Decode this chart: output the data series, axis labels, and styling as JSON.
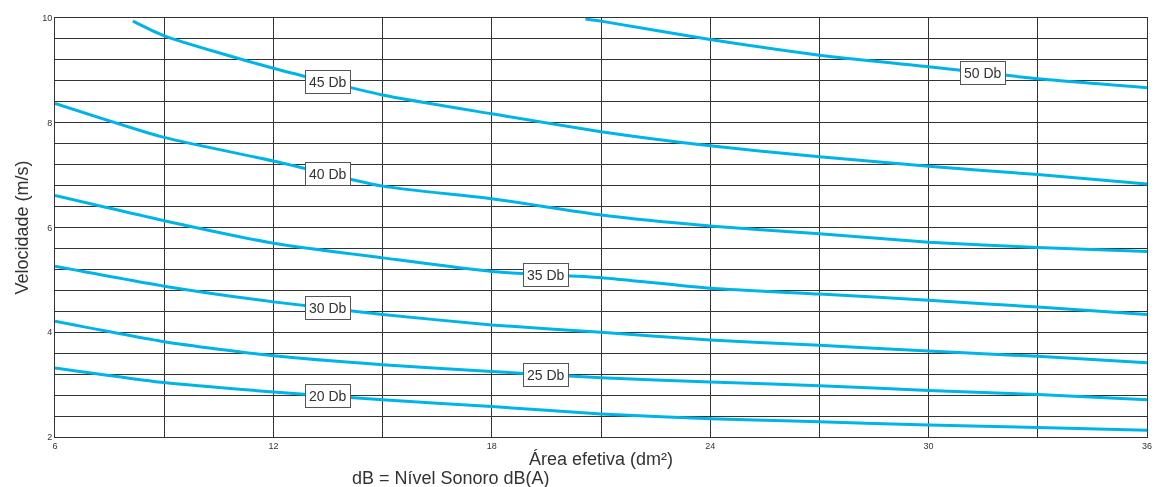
{
  "chart_data": {
    "type": "line",
    "xlabel": "Área efetiva (dm²)",
    "ylabel": "Velocidade (m/s)",
    "annotations": [
      "dB = Nível Sonoro dB(A)"
    ],
    "x": [
      6,
      9,
      12,
      15,
      18,
      21,
      24,
      27,
      30,
      33,
      36
    ],
    "series": [
      {
        "name": "20 Db",
        "color": "#00b4e8",
        "values": [
          3.32,
          3.04,
          2.86,
          2.71,
          2.58,
          2.44,
          2.35,
          2.29,
          2.23,
          2.18,
          2.13
        ]
      },
      {
        "name": "25 Db",
        "color": "#00b4e8",
        "values": [
          4.21,
          3.82,
          3.55,
          3.38,
          3.25,
          3.13,
          3.05,
          2.98,
          2.89,
          2.81,
          2.71
        ]
      },
      {
        "name": "30 Db",
        "color": "#00b4e8",
        "values": [
          5.26,
          4.88,
          4.58,
          4.34,
          4.14,
          4.0,
          3.85,
          3.75,
          3.64,
          3.54,
          3.42
        ]
      },
      {
        "name": "35 Db",
        "color": "#00b4e8",
        "values": [
          6.61,
          6.13,
          5.7,
          5.42,
          5.16,
          5.04,
          4.84,
          4.73,
          4.61,
          4.48,
          4.34
        ]
      },
      {
        "name": "40 Db",
        "color": "#00b4e8",
        "values": [
          8.37,
          7.72,
          7.27,
          6.79,
          6.55,
          6.24,
          6.03,
          5.88,
          5.72,
          5.62,
          5.54
        ]
      },
      {
        "name": "45 Db",
        "color": "#00b4e8",
        "x": [
          8.14,
          9,
          12,
          15,
          18,
          21,
          24,
          27,
          30,
          33,
          36
        ],
        "values": [
          9.94,
          9.66,
          9.04,
          8.53,
          8.17,
          7.83,
          7.56,
          7.35,
          7.17,
          7.01,
          6.83
        ]
      },
      {
        "name": "50 Db",
        "color": "#00b4e8",
        "x": [
          20.57,
          21,
          24,
          27,
          30,
          33,
          36
        ],
        "values": [
          9.98,
          9.94,
          9.59,
          9.29,
          9.07,
          8.84,
          8.67
        ]
      }
    ],
    "xlim": [
      6,
      36
    ],
    "xticks": [
      6,
      {
        "value": 9,
        "label": null
      },
      12,
      {
        "value": 15,
        "label": null
      },
      18,
      {
        "value": 21,
        "label": null
      },
      24,
      {
        "value": 27,
        "label": null
      },
      30,
      {
        "value": 33,
        "label": null
      },
      36
    ],
    "ylim": [
      2,
      10
    ],
    "yticks": [
      2,
      {
        "value": 2.4,
        "label": null
      },
      {
        "value": 2.8,
        "label": null
      },
      {
        "value": 3.2,
        "label": null
      },
      {
        "value": 3.6,
        "label": null
      },
      4,
      {
        "value": 4.4,
        "label": null
      },
      {
        "value": 4.8,
        "label": null
      },
      {
        "value": 5.2,
        "label": null
      },
      {
        "value": 5.6,
        "label": null
      },
      6,
      {
        "value": 6.4,
        "label": null
      },
      {
        "value": 6.8,
        "label": null
      },
      {
        "value": 7.2,
        "label": null
      },
      {
        "value": 7.6,
        "label": null
      },
      8,
      {
        "value": 8.4,
        "label": null
      },
      {
        "value": 8.8,
        "label": null
      },
      {
        "value": 9.2,
        "label": null
      },
      {
        "value": 9.6,
        "label": null
      },
      10
    ],
    "grid": true,
    "legend": false,
    "marker": "none",
    "line_style": "solid"
  }
}
